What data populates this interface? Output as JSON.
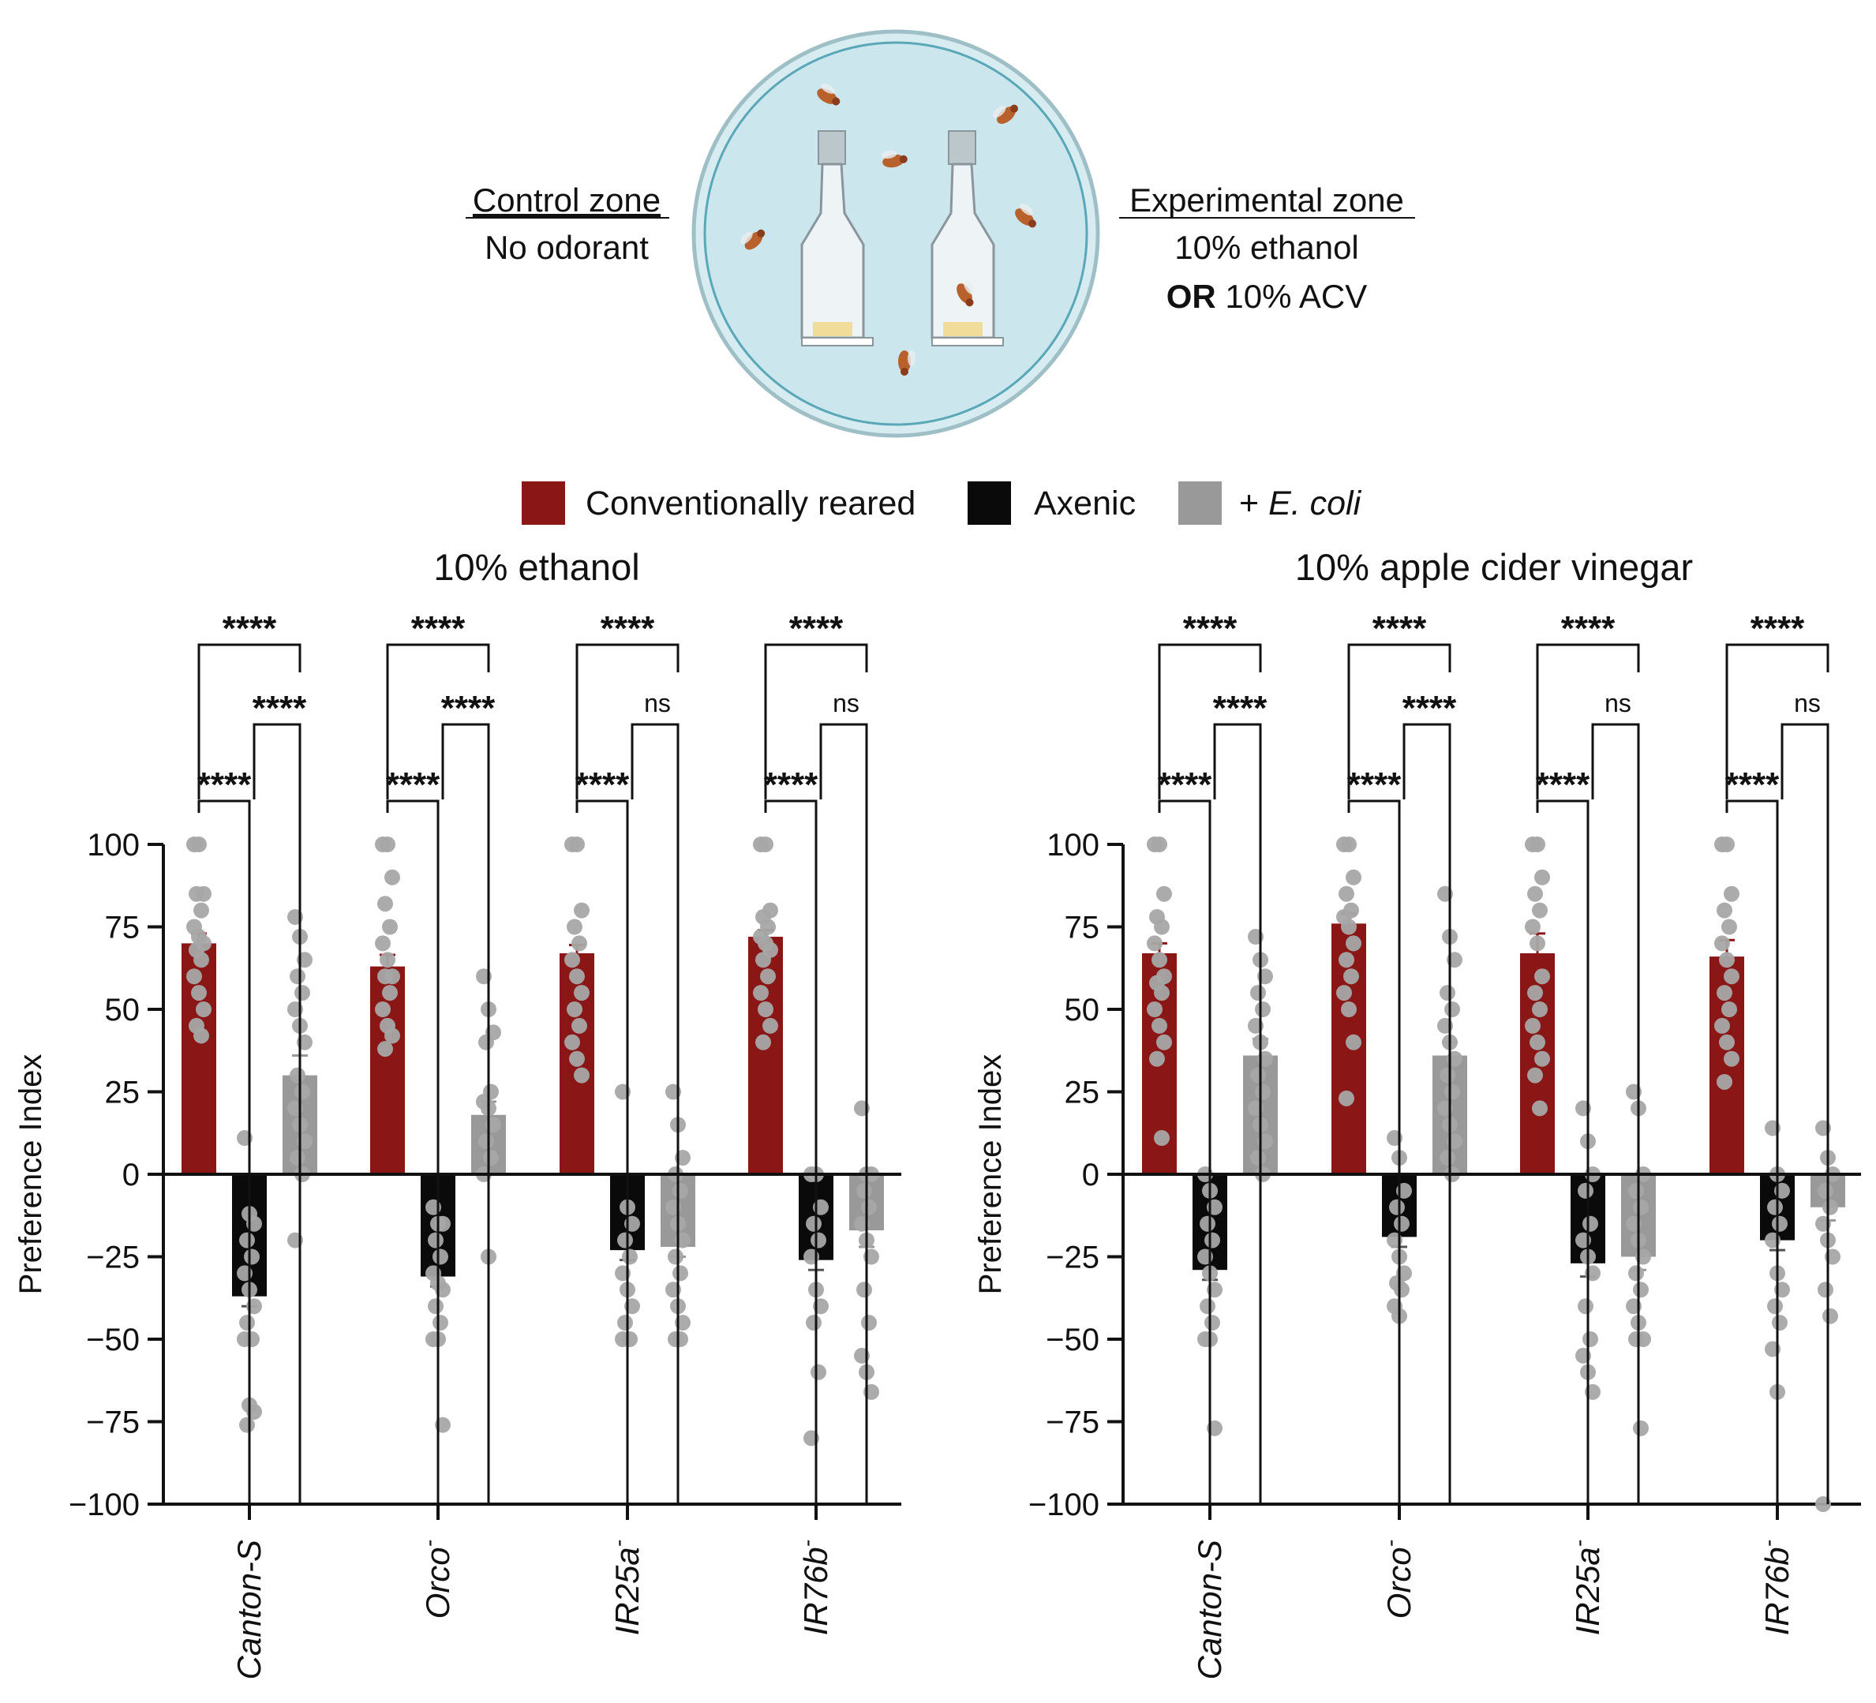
{
  "diagram": {
    "control_zone": {
      "title": "Control zone",
      "line1": "No odorant"
    },
    "experimental_zone": {
      "title": "Experimental zone",
      "line1": "10% ethanol",
      "line2_bold": "OR",
      "line2_rest": " 10% ACV"
    }
  },
  "legend": [
    {
      "label": "Conventionally reared",
      "color": "#8a1616",
      "text_color": "#8a1616",
      "italic": ""
    },
    {
      "label": "Axenic",
      "color": "#0a0a0a",
      "text_color": "#111111",
      "italic": ""
    },
    {
      "label": "+ ",
      "color": "#999999",
      "text_color": "#9a9a9a",
      "italic": "E. coli"
    }
  ],
  "colors": {
    "conv": "#8a1616",
    "axenic": "#0a0a0a",
    "ecoli": "#999999",
    "dot": "#a6a6a6"
  },
  "chart_data": [
    {
      "type": "bar",
      "title": "10% ethanol",
      "ylabel": "Preference Index",
      "ylim": [
        -100,
        100
      ],
      "yticks": [
        "100",
        "75",
        "50",
        "25",
        "0",
        "−25",
        "−50",
        "−75",
        "−100"
      ],
      "categories": [
        "Canton-S",
        "Orco",
        "IR25a",
        "IR76b"
      ],
      "category_superscript": [
        "",
        "-",
        "-",
        "-"
      ],
      "series": [
        {
          "name": "Conventionally reared",
          "values": [
            70,
            63,
            67,
            72
          ],
          "sem": [
            3,
            3.5,
            2.5,
            2
          ],
          "points": [
            [
              100,
              100,
              85,
              85,
              80,
              75,
              72,
              70,
              68,
              65,
              60,
              55,
              50,
              45,
              42
            ],
            [
              100,
              100,
              90,
              82,
              75,
              70,
              65,
              60,
              60,
              55,
              50,
              45,
              42,
              38
            ],
            [
              100,
              100,
              80,
              75,
              70,
              65,
              60,
              55,
              50,
              45,
              40,
              35,
              30
            ],
            [
              100,
              100,
              80,
              78,
              75,
              72,
              70,
              68,
              65,
              60,
              55,
              50,
              45,
              40
            ]
          ]
        },
        {
          "name": "Axenic",
          "values": [
            -37,
            -31,
            -23,
            -26
          ],
          "sem": [
            3,
            3,
            3,
            3
          ],
          "points": [
            [
              11,
              -12,
              -15,
              -20,
              -25,
              -30,
              -35,
              -40,
              -45,
              -50,
              -50,
              -70,
              -72,
              -76
            ],
            [
              -10,
              -15,
              -15,
              -20,
              -25,
              -30,
              -33,
              -35,
              -40,
              -45,
              -50,
              -50,
              -76
            ],
            [
              25,
              -10,
              -15,
              -20,
              -25,
              -30,
              -35,
              -40,
              -45,
              -50,
              -50
            ],
            [
              0,
              0,
              -10,
              -15,
              -20,
              -25,
              -35,
              -40,
              -45,
              -60,
              -80
            ]
          ]
        },
        {
          "name": "+ E. coli",
          "values": [
            30,
            18,
            -22,
            -17
          ],
          "sem": [
            6,
            4,
            3,
            5
          ],
          "points": [
            [
              78,
              72,
              65,
              60,
              55,
              50,
              45,
              40,
              30,
              25,
              20,
              15,
              10,
              5,
              0,
              -20
            ],
            [
              60,
              50,
              43,
              40,
              25,
              22,
              20,
              15,
              10,
              5,
              0,
              -25
            ],
            [
              25,
              15,
              5,
              0,
              -5,
              -10,
              -15,
              -20,
              -25,
              -30,
              -35,
              -40,
              -45,
              -50,
              -50
            ],
            [
              20,
              0,
              0,
              -5,
              -10,
              -15,
              -20,
              -25,
              -35,
              -45,
              -55,
              -60,
              -66
            ]
          ]
        }
      ],
      "comparisons": [
        [
          "****",
          "****",
          "****"
        ],
        [
          "****",
          "****",
          "****"
        ],
        [
          "****",
          "ns",
          "****"
        ],
        [
          "****",
          "ns",
          "****"
        ]
      ]
    },
    {
      "type": "bar",
      "title": "10% apple cider vinegar",
      "ylabel": "Preference Index",
      "ylim": [
        -100,
        100
      ],
      "yticks": [
        "100",
        "75",
        "50",
        "25",
        "0",
        "−25",
        "−50",
        "−75",
        "−100"
      ],
      "categories": [
        "Canton-S",
        "Orco",
        "IR25a",
        "IR76b"
      ],
      "category_superscript": [
        "",
        "-",
        "-",
        "-"
      ],
      "series": [
        {
          "name": "Conventionally reared",
          "values": [
            67,
            76,
            67,
            66
          ],
          "sem": [
            3,
            3,
            6,
            5
          ],
          "points": [
            [
              100,
              100,
              85,
              78,
              75,
              70,
              65,
              60,
              58,
              55,
              50,
              45,
              40,
              35,
              11
            ],
            [
              100,
              100,
              90,
              85,
              80,
              78,
              75,
              70,
              65,
              60,
              55,
              50,
              40,
              23
            ],
            [
              100,
              100,
              90,
              85,
              80,
              75,
              70,
              60,
              55,
              50,
              45,
              40,
              35,
              30,
              20
            ],
            [
              100,
              100,
              85,
              80,
              75,
              70,
              65,
              60,
              55,
              50,
              45,
              40,
              35,
              28
            ]
          ]
        },
        {
          "name": "Axenic",
          "values": [
            -29,
            -19,
            -27,
            -20
          ],
          "sem": [
            3,
            3,
            4,
            3
          ],
          "points": [
            [
              0,
              -5,
              -10,
              -15,
              -20,
              -25,
              -30,
              -35,
              -40,
              -45,
              -50,
              -50,
              -77
            ],
            [
              11,
              5,
              -5,
              -10,
              -15,
              -20,
              -25,
              -30,
              -33,
              -35,
              -40,
              -43
            ],
            [
              20,
              10,
              0,
              -5,
              -15,
              -20,
              -25,
              -30,
              -40,
              -50,
              -55,
              -60,
              -66
            ],
            [
              14,
              0,
              -5,
              -10,
              -15,
              -20,
              -30,
              -35,
              -40,
              -45,
              -53,
              -66
            ]
          ]
        },
        {
          "name": "+ E. coli",
          "values": [
            36,
            36,
            -25,
            -10
          ],
          "sem": [
            5,
            4,
            4,
            4
          ],
          "points": [
            [
              72,
              65,
              60,
              55,
              50,
              45,
              40,
              35,
              30,
              25,
              20,
              15,
              10,
              5,
              0
            ],
            [
              85,
              72,
              65,
              55,
              50,
              45,
              40,
              35,
              30,
              25,
              20,
              15,
              10,
              5,
              0
            ],
            [
              25,
              20,
              0,
              -5,
              -10,
              -15,
              -20,
              -25,
              -30,
              -35,
              -40,
              -45,
              -50,
              -50,
              -77
            ],
            [
              14,
              5,
              0,
              -5,
              -10,
              -15,
              -20,
              -25,
              -35,
              -43,
              -100
            ]
          ]
        }
      ],
      "comparisons": [
        [
          "****",
          "****",
          "****"
        ],
        [
          "****",
          "****",
          "****"
        ],
        [
          "****",
          "ns",
          "****"
        ],
        [
          "****",
          "ns",
          "****"
        ]
      ]
    }
  ]
}
